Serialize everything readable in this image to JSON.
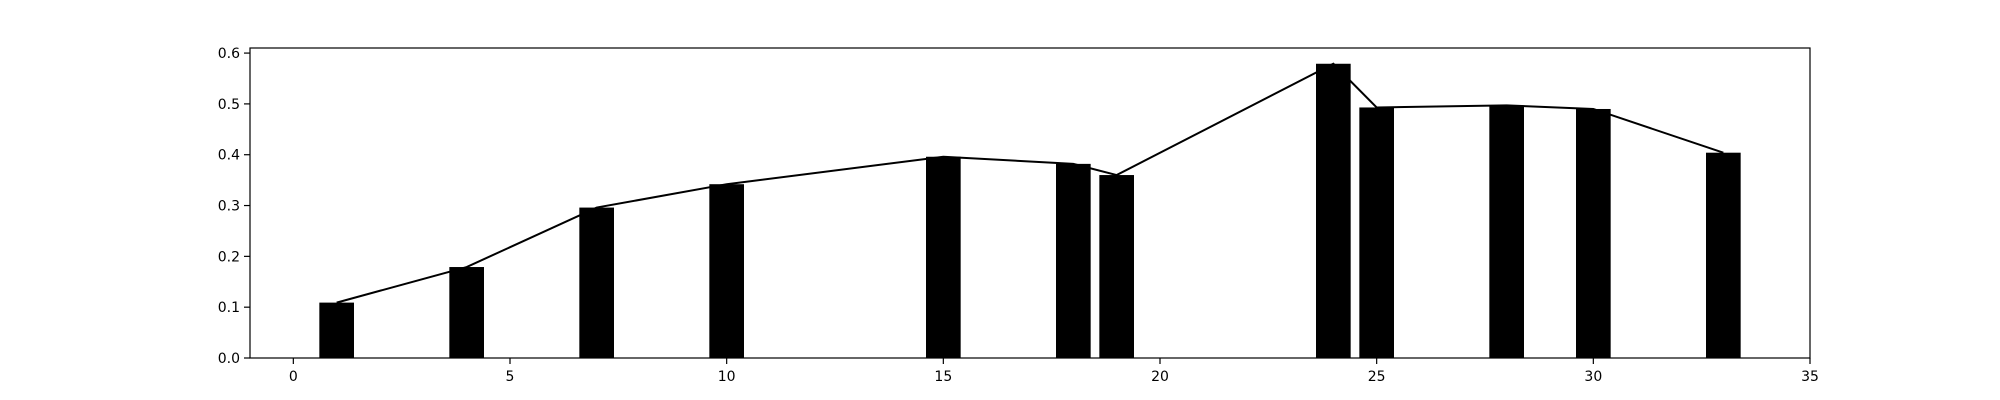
{
  "chart_data": {
    "type": "bar",
    "title": "",
    "xlabel": "",
    "ylabel": "",
    "xlim": [
      -1,
      35
    ],
    "ylim": [
      0,
      0.61
    ],
    "grid": false,
    "colors": {
      "bar": "#000000",
      "line": "#000000",
      "axis": "#000000",
      "background": "#ffffff"
    },
    "x_ticks": [
      0,
      5,
      10,
      15,
      20,
      25,
      30,
      35
    ],
    "x_tick_labels": [
      "0",
      "5",
      "10",
      "15",
      "20",
      "25",
      "30",
      "35"
    ],
    "y_ticks": [
      0.0,
      0.1,
      0.2,
      0.3,
      0.4,
      0.5,
      0.6
    ],
    "y_tick_labels": [
      "0.0",
      "0.1",
      "0.2",
      "0.3",
      "0.4",
      "0.5",
      "0.6"
    ],
    "series": [
      {
        "type": "bar",
        "x": [
          1,
          4,
          7,
          10,
          15,
          18,
          19,
          24,
          25,
          28,
          30,
          33
        ],
        "values": [
          0.109,
          0.179,
          0.296,
          0.342,
          0.396,
          0.382,
          0.36,
          0.579,
          0.493,
          0.497,
          0.49,
          0.404
        ]
      },
      {
        "type": "line",
        "x": [
          1,
          4,
          7,
          10,
          15,
          18,
          19,
          24,
          25,
          28,
          30,
          33
        ],
        "values": [
          0.109,
          0.179,
          0.296,
          0.342,
          0.396,
          0.382,
          0.36,
          0.579,
          0.493,
          0.497,
          0.49,
          0.404
        ]
      }
    ]
  }
}
